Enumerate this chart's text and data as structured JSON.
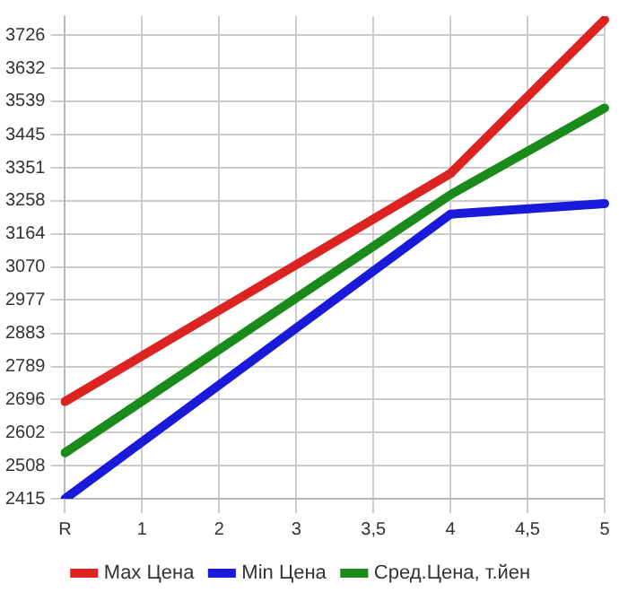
{
  "chart_data": {
    "type": "line",
    "categories": [
      "R",
      "1",
      "2",
      "3",
      "3,5",
      "4",
      "4,5",
      "5"
    ],
    "series": [
      {
        "name": "Max Цена",
        "color": "#dd2222",
        "x": [
          "R",
          "4",
          "5"
        ],
        "values": [
          2690,
          3335,
          3770
        ]
      },
      {
        "name": "Min Цена",
        "color": "#1a1adb",
        "x": [
          "R",
          "4",
          "5"
        ],
        "values": [
          2415,
          3220,
          3250
        ]
      },
      {
        "name": "Сред.Цена, т.йен",
        "color": "#1a8a1a",
        "x": [
          "R",
          "4",
          "5"
        ],
        "values": [
          2545,
          3275,
          3520
        ]
      }
    ],
    "ylim": [
      2415,
      3780
    ],
    "yticks": [
      2415,
      2508,
      2602,
      2696,
      2789,
      2883,
      2977,
      3070,
      3164,
      3258,
      3351,
      3445,
      3539,
      3632,
      3726
    ],
    "grid": true,
    "legend": "bottom",
    "marker": "none",
    "line_style": "solid"
  }
}
